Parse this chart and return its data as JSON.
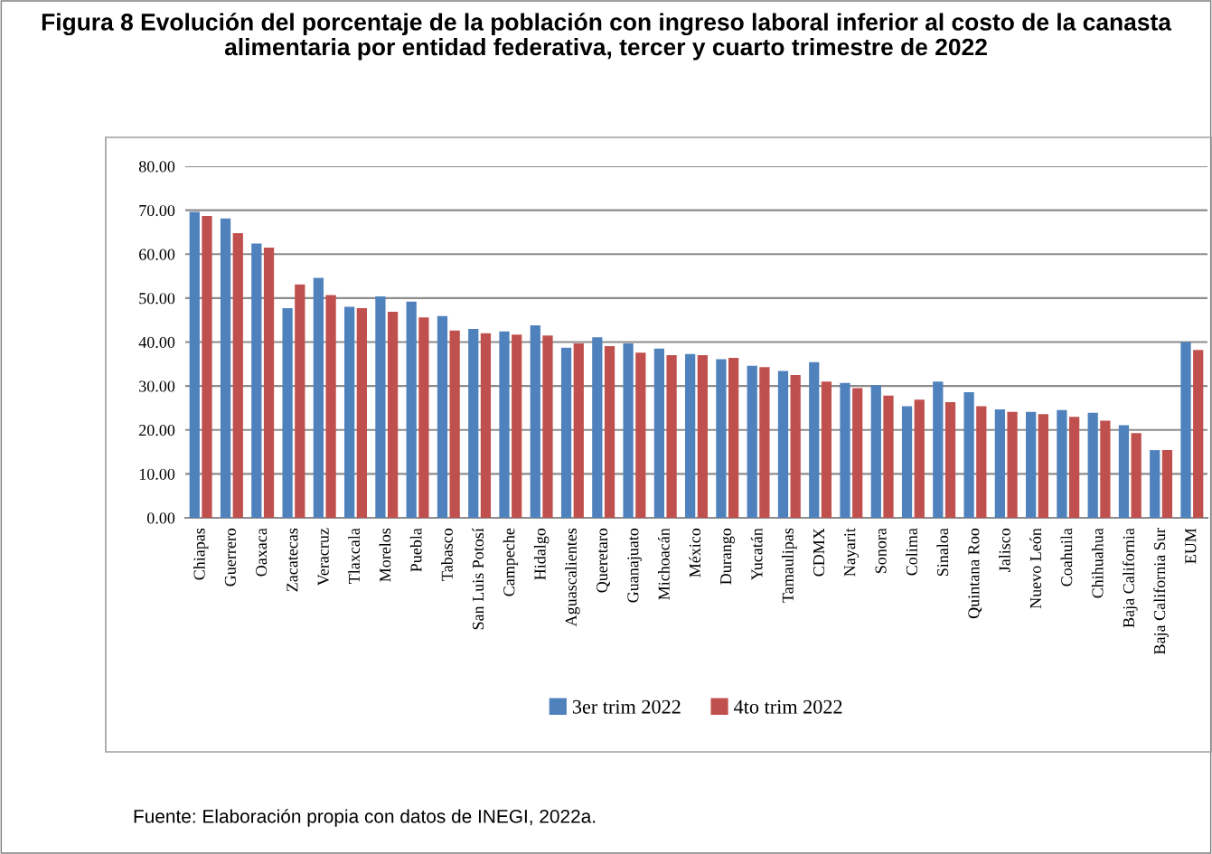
{
  "chart_data": {
    "type": "bar",
    "title": "Figura 8 Evolución del porcentaje de la población con ingreso laboral inferior al costo de la canasta alimentaria por entidad federativa, tercer y cuarto trimestre de 2022",
    "categories": [
      "Chiapas",
      "Guerrero",
      "Oaxaca",
      "Zacatecas",
      "Veracruz",
      "Tlaxcala",
      "Morelos",
      "Puebla",
      "Tabasco",
      "San Luis Potosí",
      "Campeche",
      "Hidalgo",
      "Aguascalientes",
      "Queretaro",
      "Guanajuato",
      "Michoacán",
      "México",
      "Durango",
      "Yucatán",
      "Tamaulipas",
      "CDMX",
      "Nayarit",
      "Sonora",
      "Colima",
      "Sinaloa",
      "Quintana Roo",
      "Jalisco",
      "Nuevo León",
      "Coahuila",
      "Chihuahua",
      "Baja California",
      "Baja California Sur",
      "EUM"
    ],
    "series": [
      {
        "name": "3er trim 2022",
        "color": "#4f81bd",
        "values": [
          69.6,
          68.1,
          62.4,
          47.7,
          54.6,
          48.0,
          50.4,
          49.2,
          45.9,
          43.0,
          42.4,
          43.8,
          38.7,
          41.1,
          39.7,
          38.5,
          37.3,
          36.1,
          34.6,
          33.4,
          35.4,
          30.7,
          30.2,
          25.4,
          31.0,
          28.6,
          24.7,
          24.1,
          24.5,
          23.9,
          21.1,
          15.4,
          40.0
        ]
      },
      {
        "name": "4to trim 2022",
        "color": "#c0504d",
        "values": [
          68.7,
          64.8,
          61.5,
          53.1,
          50.7,
          47.7,
          46.9,
          45.6,
          42.6,
          42.0,
          41.7,
          41.5,
          39.7,
          39.1,
          37.6,
          37.0,
          37.0,
          36.4,
          34.3,
          32.5,
          31.0,
          29.5,
          27.8,
          26.9,
          26.3,
          25.4,
          24.1,
          23.6,
          23.0,
          22.1,
          19.3,
          15.4,
          38.2
        ]
      }
    ],
    "ylim": [
      0,
      80
    ],
    "yticks": [
      {
        "value": 0,
        "label": "0.00"
      },
      {
        "value": 10,
        "label": "10.00"
      },
      {
        "value": 20,
        "label": "20.00"
      },
      {
        "value": 30,
        "label": "30.00"
      },
      {
        "value": 40,
        "label": "40.00"
      },
      {
        "value": 50,
        "label": "50.00"
      },
      {
        "value": 60,
        "label": "60.00"
      },
      {
        "value": 70,
        "label": "70.00"
      },
      {
        "value": 80,
        "label": "80.00"
      }
    ],
    "grid": "y",
    "legend": "bottom",
    "annotations": [
      "Fuente: Elaboración propia con datos de INEGI, 2022a."
    ]
  }
}
